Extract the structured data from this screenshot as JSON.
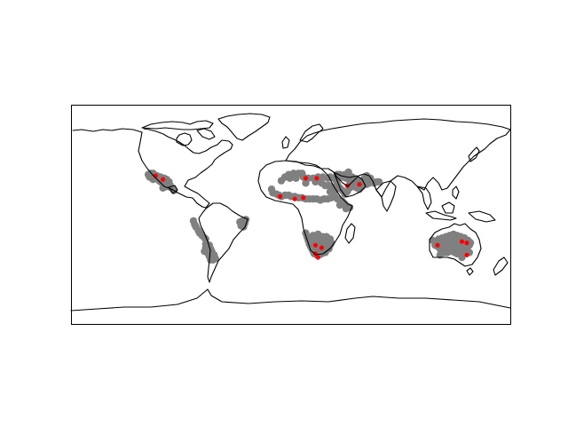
{
  "map": {
    "projection": "equirectangular",
    "extent": {
      "lon": [
        -180,
        180
      ],
      "lat": [
        -90,
        90
      ]
    },
    "background_color": "#ffffff",
    "coastline_color": "#000000",
    "frame_color": "#000000"
  },
  "chart_data": {
    "type": "scatter",
    "title": "",
    "xlabel": "",
    "ylabel": "",
    "xlim": [
      -180,
      180
    ],
    "ylim": [
      -90,
      90
    ],
    "grid": false,
    "legend": "none",
    "series": [
      {
        "color": "#808080",
        "marker": "circle",
        "points": [
          [
            -117,
            33
          ],
          [
            -116,
            31
          ],
          [
            -115,
            31
          ],
          [
            -114,
            30
          ],
          [
            -113,
            29
          ],
          [
            -112,
            30
          ],
          [
            -111,
            31
          ],
          [
            -110,
            30
          ],
          [
            -109,
            29
          ],
          [
            -108,
            28
          ],
          [
            -107,
            27
          ],
          [
            -106,
            28
          ],
          [
            -105,
            27
          ],
          [
            -104,
            26
          ],
          [
            -103,
            25
          ],
          [
            -102,
            25
          ],
          [
            -101,
            24
          ],
          [
            -100,
            23
          ],
          [
            -112,
            32
          ],
          [
            -113,
            34
          ],
          [
            -115,
            34
          ],
          [
            -110,
            32
          ],
          [
            -107,
            31
          ],
          [
            -104,
            30
          ],
          [
            -102,
            29
          ],
          [
            -100,
            27
          ],
          [
            -99,
            24
          ],
          [
            -98,
            22
          ],
          [
            -103,
            23
          ],
          [
            -105,
            22
          ],
          [
            -96,
            20
          ],
          [
            -80,
            -5
          ],
          [
            -79,
            -8
          ],
          [
            -78,
            -10
          ],
          [
            -76,
            -13
          ],
          [
            -75,
            -15
          ],
          [
            -73,
            -17
          ],
          [
            -71,
            -19
          ],
          [
            -70,
            -20
          ],
          [
            -70,
            -24
          ],
          [
            -70,
            -27
          ],
          [
            -71,
            -30
          ],
          [
            -69,
            -27
          ],
          [
            -67,
            -25
          ],
          [
            -66,
            -28
          ],
          [
            -68,
            -32
          ],
          [
            -67,
            -34
          ],
          [
            -65,
            -30
          ],
          [
            -63,
            -33
          ],
          [
            -64,
            -37
          ],
          [
            -62,
            -36
          ],
          [
            -66,
            -37
          ],
          [
            -40,
            -5
          ],
          [
            -38,
            -7
          ],
          [
            -39,
            -10
          ],
          [
            -41,
            -9
          ],
          [
            -37,
            -4
          ],
          [
            -42,
            -6
          ],
          [
            -16,
            21
          ],
          [
            -15,
            18
          ],
          [
            -12,
            17
          ],
          [
            -10,
            16
          ],
          [
            -8,
            15
          ],
          [
            -5,
            16
          ],
          [
            -2,
            16
          ],
          [
            0,
            15
          ],
          [
            3,
            15
          ],
          [
            6,
            14
          ],
          [
            9,
            14
          ],
          [
            12,
            13
          ],
          [
            15,
            13
          ],
          [
            18,
            13
          ],
          [
            21,
            13
          ],
          [
            24,
            12
          ],
          [
            27,
            13
          ],
          [
            30,
            13
          ],
          [
            33,
            14
          ],
          [
            36,
            15
          ],
          [
            38,
            13
          ],
          [
            40,
            12
          ],
          [
            42,
            11
          ],
          [
            44,
            9
          ],
          [
            46,
            7
          ],
          [
            48,
            6
          ],
          [
            40,
            8
          ],
          [
            45,
            5
          ],
          [
            -8,
            28
          ],
          [
            -5,
            31
          ],
          [
            -2,
            33
          ],
          [
            2,
            34
          ],
          [
            6,
            34
          ],
          [
            9,
            34
          ],
          [
            10,
            31
          ],
          [
            14,
            30
          ],
          [
            18,
            30
          ],
          [
            22,
            31
          ],
          [
            26,
            31
          ],
          [
            30,
            30
          ],
          [
            32,
            31
          ],
          [
            -1,
            30
          ],
          [
            4,
            30
          ],
          [
            12,
            26
          ],
          [
            20,
            27
          ],
          [
            25,
            26
          ],
          [
            28,
            24
          ],
          [
            31,
            24
          ],
          [
            33,
            23
          ],
          [
            34,
            21
          ],
          [
            32,
            19
          ],
          [
            36,
            20
          ],
          [
            35,
            30
          ],
          [
            37,
            28
          ],
          [
            38,
            25
          ],
          [
            40,
            22
          ],
          [
            42,
            20
          ],
          [
            44,
            17
          ],
          [
            46,
            19
          ],
          [
            48,
            22
          ],
          [
            50,
            24
          ],
          [
            52,
            23
          ],
          [
            54,
            22
          ],
          [
            56,
            21
          ],
          [
            58,
            23
          ],
          [
            55,
            26
          ],
          [
            52,
            27
          ],
          [
            48,
            28
          ],
          [
            45,
            30
          ],
          [
            42,
            31
          ],
          [
            40,
            33
          ],
          [
            38,
            33
          ],
          [
            44,
            33
          ],
          [
            47,
            35
          ],
          [
            50,
            31
          ],
          [
            53,
            29
          ],
          [
            56,
            27
          ],
          [
            59,
            26
          ],
          [
            62,
            25
          ],
          [
            64,
            26
          ],
          [
            66,
            27
          ],
          [
            68,
            26
          ],
          [
            70,
            27
          ],
          [
            72,
            27
          ],
          [
            60,
            30
          ],
          [
            62,
            32
          ],
          [
            65,
            30
          ],
          [
            12,
            -15
          ],
          [
            13,
            -18
          ],
          [
            14,
            -21
          ],
          [
            15,
            -24
          ],
          [
            16,
            -26
          ],
          [
            17,
            -28
          ],
          [
            18,
            -30
          ],
          [
            19,
            -32
          ],
          [
            21,
            -33
          ],
          [
            23,
            -33
          ],
          [
            25,
            -32
          ],
          [
            27,
            -30
          ],
          [
            26,
            -28
          ],
          [
            24,
            -26
          ],
          [
            22,
            -25
          ],
          [
            20,
            -22
          ],
          [
            18,
            -20
          ],
          [
            21,
            -19
          ],
          [
            24,
            -20
          ],
          [
            26,
            -22
          ],
          [
            28,
            -24
          ],
          [
            30,
            -22
          ],
          [
            32,
            -25
          ],
          [
            29,
            -27
          ],
          [
            31,
            -28
          ],
          [
            28,
            -31
          ],
          [
            25,
            -29
          ],
          [
            22,
            -28
          ],
          [
            20,
            -28
          ],
          [
            18,
            -17
          ],
          [
            22,
            -16
          ],
          [
            26,
            -18
          ],
          [
            29,
            -18
          ],
          [
            32,
            -20
          ],
          [
            33,
            -23
          ],
          [
            23,
            -21
          ],
          [
            19,
            -24
          ],
          [
            116,
            -21
          ],
          [
            118,
            -23
          ],
          [
            120,
            -26
          ],
          [
            122,
            -28
          ],
          [
            124,
            -30
          ],
          [
            126,
            -31
          ],
          [
            128,
            -31
          ],
          [
            131,
            -30
          ],
          [
            134,
            -31
          ],
          [
            136,
            -32
          ],
          [
            138,
            -32
          ],
          [
            140,
            -31
          ],
          [
            142,
            -29
          ],
          [
            144,
            -27
          ],
          [
            146,
            -25
          ],
          [
            147,
            -23
          ],
          [
            145,
            -21
          ],
          [
            142,
            -19
          ],
          [
            139,
            -18
          ],
          [
            136,
            -17
          ],
          [
            133,
            -16
          ],
          [
            130,
            -17
          ],
          [
            127,
            -18
          ],
          [
            124,
            -19
          ],
          [
            121,
            -20
          ],
          [
            118,
            -25
          ],
          [
            121,
            -23
          ],
          [
            124,
            -23
          ],
          [
            127,
            -22
          ],
          [
            130,
            -21
          ],
          [
            133,
            -20
          ],
          [
            136,
            -21
          ],
          [
            139,
            -22
          ],
          [
            142,
            -23
          ],
          [
            144,
            -24
          ],
          [
            126,
            -26
          ],
          [
            129,
            -26
          ],
          [
            132,
            -25
          ],
          [
            135,
            -25
          ],
          [
            138,
            -26
          ],
          [
            141,
            -26
          ],
          [
            130,
            -28
          ],
          [
            134,
            -28
          ],
          [
            138,
            -29
          ],
          [
            122,
            -33
          ],
          [
            140,
            -35
          ],
          [
            146,
            -31
          ]
        ]
      },
      {
        "color": "#ff0000",
        "marker": "circle",
        "points": [
          [
            -111,
            32
          ],
          [
            -105,
            29
          ],
          [
            -9,
            15
          ],
          [
            3,
            13
          ],
          [
            10,
            14
          ],
          [
            12,
            30
          ],
          [
            21,
            30
          ],
          [
            46,
            24
          ],
          [
            56,
            25
          ],
          [
            20,
            -25
          ],
          [
            25,
            -27
          ],
          [
            20,
            -32
          ],
          [
            22,
            -35
          ],
          [
            120,
            -25
          ],
          [
            140,
            -22
          ],
          [
            144,
            -23
          ],
          [
            144,
            -33
          ]
        ]
      }
    ]
  }
}
